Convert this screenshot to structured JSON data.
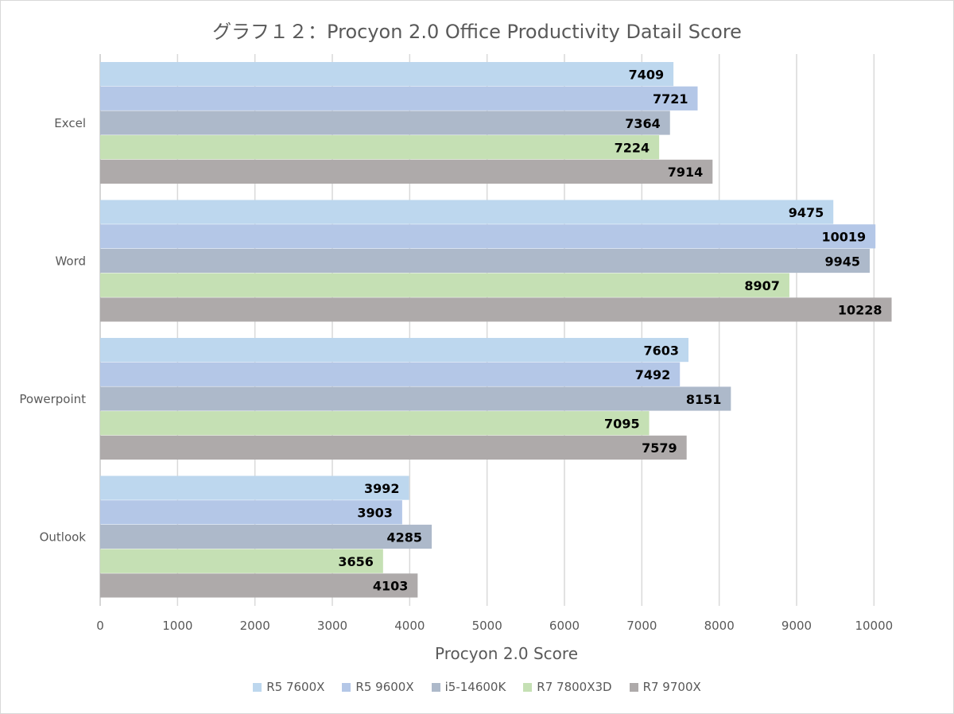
{
  "chart_data": {
    "type": "bar",
    "orientation": "horizontal",
    "title": "グラフ１２：Procyon 2.0 Office Productivity Datail Score",
    "xlabel": "Procyon 2.0 Score",
    "ylabel": "",
    "xlim": [
      0,
      10500
    ],
    "xticks": [
      0,
      1000,
      2000,
      3000,
      4000,
      5000,
      6000,
      7000,
      8000,
      9000,
      10000
    ],
    "grid": true,
    "legend_position": "bottom",
    "categories": [
      "Excel",
      "Word",
      "Powerpoint",
      "Outlook"
    ],
    "series": [
      {
        "name": "R5 7600X",
        "color": "#bdd7ee",
        "values": [
          7409,
          9475,
          7603,
          3992
        ]
      },
      {
        "name": "R5 9600X",
        "color": "#b4c7e7",
        "values": [
          7721,
          10019,
          7492,
          3903
        ]
      },
      {
        "name": "i5-14600K",
        "color": "#adb9ca",
        "values": [
          7364,
          9945,
          8151,
          4285
        ]
      },
      {
        "name": "R7 7800X3D",
        "color": "#c5e0b4",
        "values": [
          7224,
          8907,
          7095,
          3656
        ]
      },
      {
        "name": "R7 9700X",
        "color": "#aeaaaa",
        "values": [
          7914,
          10228,
          7579,
          4103
        ]
      }
    ]
  }
}
